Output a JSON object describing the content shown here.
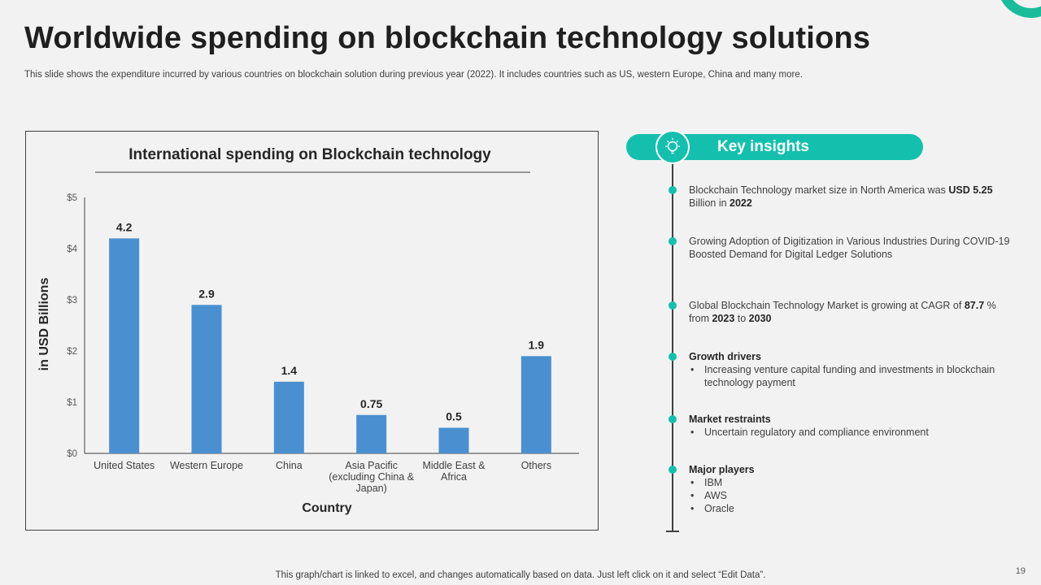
{
  "slide": {
    "title": "Worldwide spending on blockchain technology solutions",
    "subtitle": "This slide shows the expenditure incurred by various countries on blockchain solution during previous year (2022). It includes countries such as US, western Europe, China and many more.",
    "footer": "This graph/chart is linked to excel, and changes automatically based on data. Just left click on it and select “Edit Data”.",
    "page_number": "19",
    "accent_color": "#15bfae"
  },
  "chart_data": {
    "type": "bar",
    "title": "International spending on Blockchain technology",
    "categories": [
      [
        "United States"
      ],
      [
        "Western Europe"
      ],
      [
        "China"
      ],
      [
        "Asia Pacific",
        "(excluding China &",
        "Japan)"
      ],
      [
        "Middle East &",
        "Africa"
      ],
      [
        "Others"
      ]
    ],
    "values": [
      4.2,
      2.9,
      1.4,
      0.75,
      0.5,
      1.9
    ],
    "data_labels": [
      "4.2",
      "2.9",
      "1.4",
      "0.75",
      "0.5",
      "1.9"
    ],
    "xlabel": "Country",
    "ylabel": "in USD Billions",
    "ylim": [
      0,
      5
    ],
    "yticks": [
      0,
      1,
      2,
      3,
      4,
      5
    ],
    "ytick_labels": [
      "$0",
      "$1",
      "$2",
      "$3",
      "$4",
      "$5"
    ],
    "bar_color": "#4a90d0",
    "grid": false
  },
  "insights": {
    "header": "Key insights",
    "icon": "lightbulb-icon",
    "items": [
      {
        "type": "rich",
        "parts": [
          {
            "text": "Blockchain Technology market size in North America was "
          },
          {
            "text": "USD 5.25",
            "bold": true
          },
          {
            "text": " Billion in "
          },
          {
            "text": "2022",
            "bold": true
          }
        ]
      },
      {
        "type": "rich",
        "parts": [
          {
            "text": "Growing Adoption of Digitization in Various Industries During COVID-19 Boosted Demand for Digital Ledger Solutions"
          }
        ]
      },
      {
        "type": "rich",
        "parts": [
          {
            "text": "Global Blockchain Technology Market is growing  at CAGR of "
          },
          {
            "text": "87.7",
            "bold": true
          },
          {
            "text": " % from "
          },
          {
            "text": "2023",
            "bold": true
          },
          {
            "text": " to "
          },
          {
            "text": "2030",
            "bold": true
          }
        ]
      },
      {
        "type": "list",
        "heading": "Growth drivers",
        "bullets": [
          "Increasing venture capital funding and investments in blockchain technology payment"
        ]
      },
      {
        "type": "list",
        "heading": "Market restraints",
        "bullets": [
          "Uncertain regulatory and compliance environment"
        ]
      },
      {
        "type": "list",
        "heading": "Major players",
        "bullets": [
          "IBM",
          "AWS",
          "Oracle"
        ]
      }
    ]
  }
}
